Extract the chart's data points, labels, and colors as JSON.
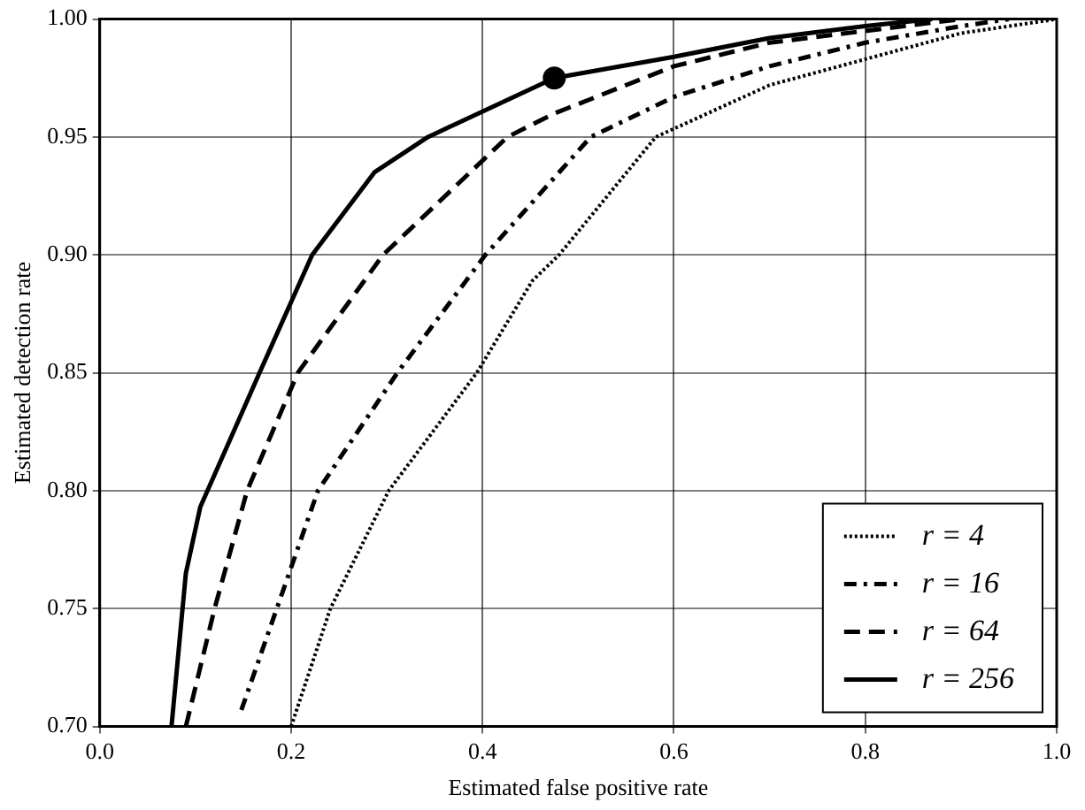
{
  "chart_data": {
    "type": "line",
    "xlabel": "Estimated false positive rate",
    "ylabel": "Estimated detection rate",
    "xlim": [
      0,
      1
    ],
    "ylim": [
      0.7,
      1
    ],
    "xticks": [
      {
        "value": 0,
        "label": "0.0"
      },
      {
        "value": 0.2,
        "label": "0.2"
      },
      {
        "value": 0.4,
        "label": "0.4"
      },
      {
        "value": 0.6,
        "label": "0.6"
      },
      {
        "value": 0.8,
        "label": "0.8"
      },
      {
        "value": 1,
        "label": "1.0"
      }
    ],
    "yticks": [
      {
        "value": 0.7,
        "label": "0.70"
      },
      {
        "value": 0.75,
        "label": "0.75"
      },
      {
        "value": 0.8,
        "label": "0.80"
      },
      {
        "value": 0.85,
        "label": "0.85"
      },
      {
        "value": 0.9,
        "label": "0.90"
      },
      {
        "value": 0.95,
        "label": "0.95"
      },
      {
        "value": 1,
        "label": "1.00"
      }
    ],
    "grid": true,
    "legend": "bottom right",
    "marker": "none",
    "series": [
      {
        "name": "r = 4",
        "color": "#000000",
        "line_style": "dotted",
        "x": [
          0.2,
          0.241,
          0.302,
          0.394,
          0.452,
          0.48,
          0.581,
          0.7,
          0.8,
          0.9,
          1.0
        ],
        "values": [
          0.7,
          0.75,
          0.8,
          0.85,
          0.889,
          0.9,
          0.95,
          0.972,
          0.983,
          0.994,
          1.0
        ]
      },
      {
        "name": "r = 16",
        "color": "#000000",
        "line_style": "dashdot",
        "x": [
          0.148,
          0.185,
          0.228,
          0.311,
          0.403,
          0.513,
          0.6,
          0.7,
          0.8,
          0.9,
          0.95
        ],
        "values": [
          0.707,
          0.75,
          0.8,
          0.85,
          0.9,
          0.95,
          0.967,
          0.98,
          0.99,
          0.997,
          1.0
        ]
      },
      {
        "name": "r = 64",
        "color": "#000000",
        "line_style": "dashed",
        "x": [
          0.09,
          0.12,
          0.154,
          0.207,
          0.296,
          0.4,
          0.426,
          0.475,
          0.6,
          0.7,
          0.8,
          0.9
        ],
        "values": [
          0.7,
          0.75,
          0.8,
          0.85,
          0.9,
          0.94,
          0.95,
          0.96,
          0.98,
          0.99,
          0.995,
          1.0
        ]
      },
      {
        "name": "r = 256",
        "color": "#000000",
        "line_style": "solid",
        "x": [
          0.075,
          0.09,
          0.105,
          0.167,
          0.222,
          0.287,
          0.343,
          0.475,
          0.6,
          0.7,
          0.8,
          0.87
        ],
        "values": [
          0.7,
          0.765,
          0.793,
          0.85,
          0.9,
          0.935,
          0.95,
          0.975,
          0.984,
          0.992,
          0.997,
          1.0
        ]
      },
      {
        "type": "scatter",
        "color": "#000000",
        "marker": "circle",
        "x": [
          0.475
        ],
        "values": [
          0.975
        ]
      }
    ]
  }
}
